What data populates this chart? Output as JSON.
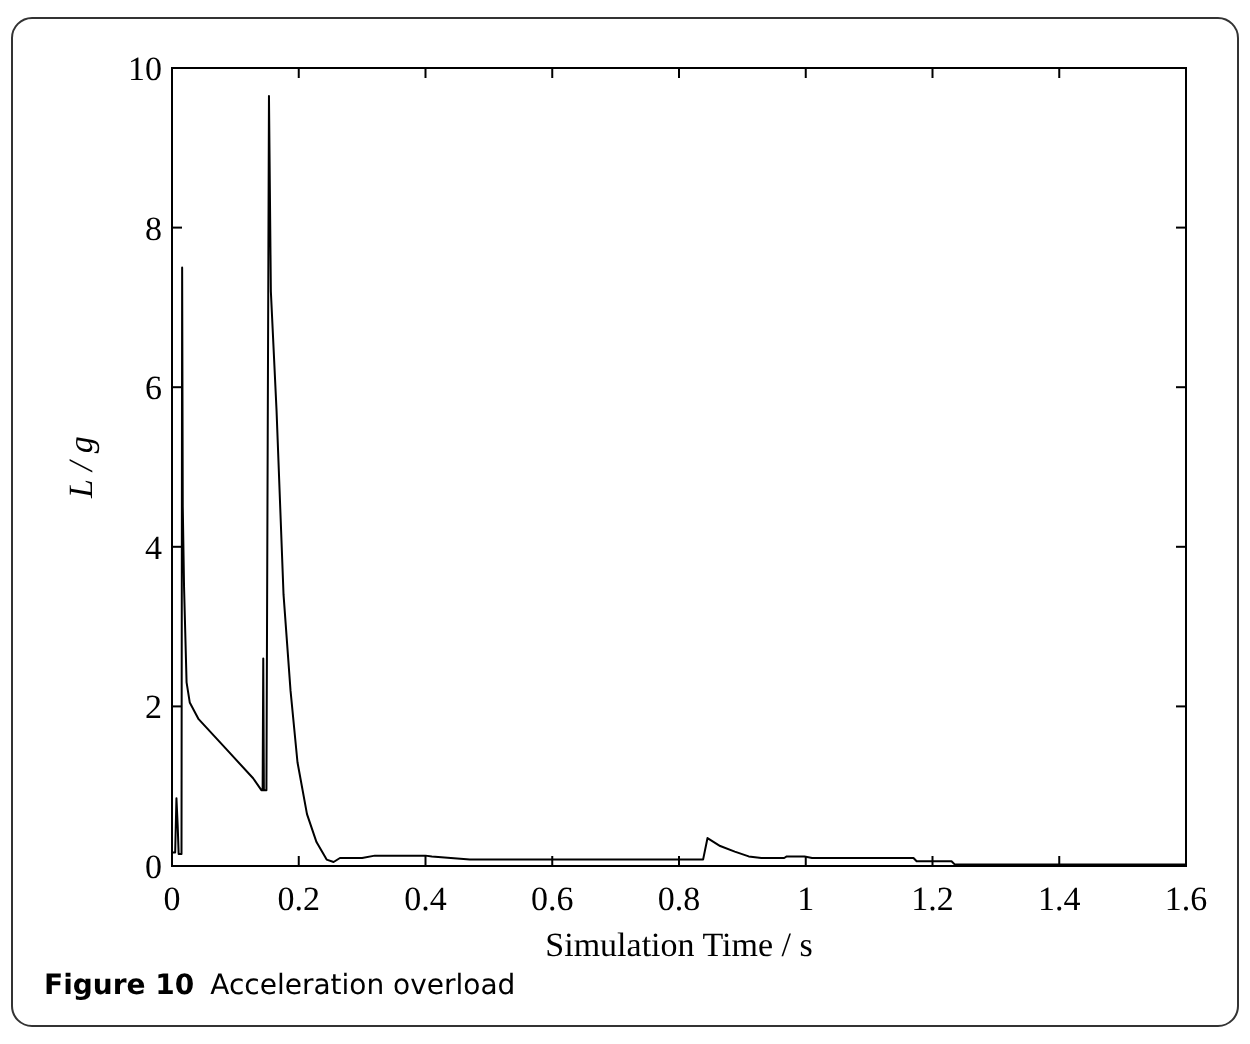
{
  "chart_data": {
    "type": "line",
    "xlabel": "Simulation Time / s",
    "ylabel": "L / g",
    "annotations": [
      "Figure 10",
      "Acceleration overload"
    ],
    "xlim": [
      0,
      1.6
    ],
    "xticks": [
      0,
      0.2,
      0.4,
      0.6,
      0.8,
      1,
      1.2,
      1.4,
      1.6
    ],
    "ylim": [
      0,
      10
    ],
    "yticks": [
      0,
      2,
      4,
      6,
      8,
      10
    ],
    "grid": false,
    "marker": "none",
    "line_style": "solid",
    "series": [
      {
        "color": "#000000",
        "x": [
          0,
          0.005,
          0.007,
          0.009,
          0.0105,
          0.015,
          0.016,
          0.017,
          0.019,
          0.023,
          0.028,
          0.042,
          0.085,
          0.128,
          0.141,
          0.143,
          0.144,
          0.145,
          0.146,
          0.149,
          0.153,
          0.156,
          0.165,
          0.176,
          0.187,
          0.198,
          0.213,
          0.228,
          0.244,
          0.255,
          0.265,
          0.3,
          0.32,
          0.4,
          0.41,
          0.47,
          0.5,
          0.6,
          0.7,
          0.8,
          0.838,
          0.845,
          0.865,
          0.888,
          0.91,
          0.93,
          0.966,
          0.97,
          0.998,
          1.01,
          1.1,
          1.17,
          1.175,
          1.23,
          1.235,
          1.4,
          1.6
        ],
        "values": [
          0.17,
          0.17,
          0.85,
          0.5,
          0.15,
          0.15,
          7.5,
          4.5,
          3.5,
          2.3,
          2.05,
          1.84,
          1.47,
          1.1,
          0.95,
          0.95,
          2.6,
          0.95,
          0.95,
          0.95,
          9.65,
          7.2,
          5.7,
          3.4,
          2.2,
          1.3,
          0.65,
          0.3,
          0.08,
          0.05,
          0.1,
          0.1,
          0.13,
          0.13,
          0.12,
          0.08,
          0.08,
          0.08,
          0.08,
          0.08,
          0.08,
          0.35,
          0.25,
          0.18,
          0.12,
          0.1,
          0.1,
          0.12,
          0.12,
          0.1,
          0.1,
          0.1,
          0.06,
          0.06,
          0.02,
          0.02,
          0.02
        ]
      }
    ]
  }
}
